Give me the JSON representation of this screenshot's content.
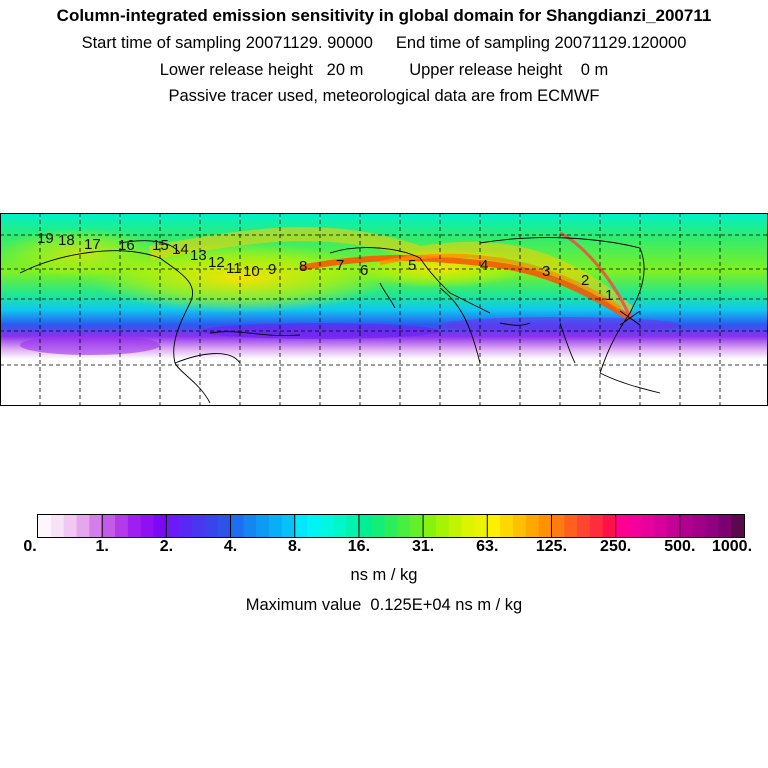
{
  "header": {
    "title": "Column-integrated emission sensitivity in global domain for Shangdianzi_200711",
    "line2": "Start time of sampling 20071129. 90000     End time of sampling 20071129.120000",
    "line3": "Lower release height   20 m          Upper release height    0 m",
    "line4": "Passive tracer used, meteorological data are from ECMWF"
  },
  "map": {
    "day_labels": [
      "1",
      "2",
      "3",
      "4",
      "5",
      "6",
      "7",
      "8",
      "9",
      "10",
      "11",
      "12",
      "13",
      "14",
      "15",
      "16",
      "17",
      "18",
      "19"
    ],
    "background_color": "#ffffff",
    "land_outline_color": "#000000"
  },
  "colorbar": {
    "tick_labels": [
      "0.",
      "1.",
      "2.",
      "4.",
      "8.",
      "16.",
      "31.",
      "63.",
      "125.",
      "250.",
      "500.",
      "1000."
    ],
    "colors": [
      "#fdf6fd",
      "#f8e2f8",
      "#f0c8f2",
      "#e6a6ee",
      "#d57de9",
      "#c45ae8",
      "#b33ae8",
      "#a11ef0",
      "#8f10f2",
      "#7a0af4",
      "#6c1bf6",
      "#5a28f4",
      "#4a36f0",
      "#3a44ec",
      "#2c52e8",
      "#1d6ff0",
      "#1585f2",
      "#0c9af4",
      "#08aff6",
      "#05c3f8",
      "#00e8ff",
      "#00f4f4",
      "#00f8e0",
      "#00f7c8",
      "#00f4b0",
      "#00ef94",
      "#12ee78",
      "#2aee5c",
      "#46ef40",
      "#64f028",
      "#86f210",
      "#a6f404",
      "#c2f400",
      "#dcf400",
      "#ecf200",
      "#fff000",
      "#ffd800",
      "#ffc000",
      "#ffa800",
      "#ff9000",
      "#ff7a10",
      "#ff6020",
      "#ff4430",
      "#ff2c3c",
      "#ff1048",
      "#ff0090",
      "#f5009a",
      "#e8009c",
      "#d8009a",
      "#c40096",
      "#b00090",
      "#a20088",
      "#900080",
      "#7c0070",
      "#5a0a4c"
    ],
    "units": "ns m / kg",
    "max_value_text": "Maximum value  0.125E+04 ns m / kg"
  }
}
